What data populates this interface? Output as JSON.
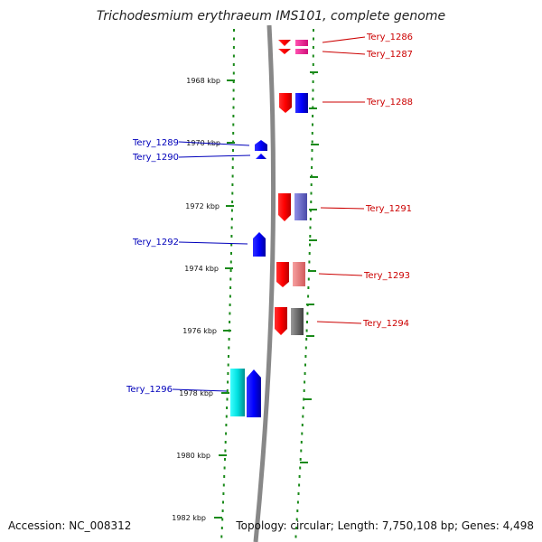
{
  "title": "Trichodesmium erythraeum IMS101, complete genome",
  "footer": {
    "accession": "Accession: NC_008312",
    "topology": "Topology: circular; Length: 7,750,108 bp; Genes: 4,498"
  },
  "ticks": [
    "1968 kbp",
    "1970 kbp",
    "1972 kbp",
    "1974 kbp",
    "1976 kbp",
    "1978 kbp",
    "1980 kbp",
    "1982 kbp"
  ],
  "colors": {
    "forward_label": "#0000bb",
    "reverse_label": "#cc0000",
    "axis": "#888888",
    "dots": "#1a8a1a"
  },
  "genes_reverse": [
    {
      "name": "Tery_1286"
    },
    {
      "name": "Tery_1287"
    },
    {
      "name": "Tery_1288"
    },
    {
      "name": "Tery_1291"
    },
    {
      "name": "Tery_1293"
    },
    {
      "name": "Tery_1294"
    }
  ],
  "genes_forward": [
    {
      "name": "Tery_1289"
    },
    {
      "name": "Tery_1290"
    },
    {
      "name": "Tery_1292"
    },
    {
      "name": "Tery_1296"
    }
  ]
}
